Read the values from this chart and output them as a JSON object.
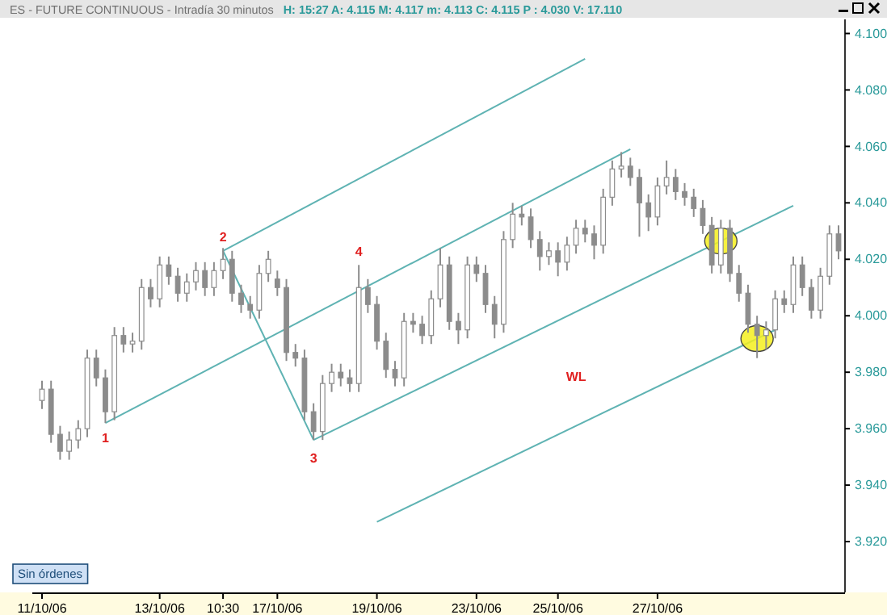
{
  "chart_data": {
    "type": "candlestick",
    "title": "ES - FUTURE CONTINUOUS - Intradía 30 minutos",
    "subtitle": "H: 15:27  A: 4.115  M: 4.117  m: 4.113  C: 4.115  P : 4.030  V: 17.110",
    "categories": [
      "11/10/06",
      null,
      null,
      null,
      null,
      null,
      null,
      null,
      null,
      null,
      null,
      null,
      null,
      "13/10/06",
      null,
      null,
      null,
      null,
      null,
      null,
      "10:30",
      null,
      null,
      null,
      null,
      null,
      "17/10/06",
      null,
      null,
      null,
      null,
      null,
      null,
      null,
      null,
      null,
      null,
      "19/10/06",
      null,
      null,
      null,
      null,
      null,
      null,
      null,
      null,
      null,
      null,
      "23/10/06",
      null,
      null,
      null,
      null,
      null,
      null,
      null,
      null,
      "25/10/06",
      null,
      null,
      null,
      null,
      null,
      null,
      null,
      null,
      null,
      null,
      "27/10/06",
      null,
      null,
      null,
      null,
      null,
      null,
      null,
      null,
      null,
      null,
      null,
      null,
      null,
      null,
      null,
      null,
      null,
      null,
      null,
      null
    ],
    "ohlc": [
      [
        3.97,
        3.977,
        3.967,
        3.974
      ],
      [
        3.974,
        3.977,
        3.955,
        3.958
      ],
      [
        3.958,
        3.961,
        3.949,
        3.952
      ],
      [
        3.952,
        3.959,
        3.949,
        3.956
      ],
      [
        3.956,
        3.963,
        3.953,
        3.96
      ],
      [
        3.96,
        3.988,
        3.957,
        3.985
      ],
      [
        3.985,
        3.988,
        3.975,
        3.978
      ],
      [
        3.978,
        3.981,
        3.962,
        3.966
      ],
      [
        3.966,
        3.996,
        3.963,
        3.993
      ],
      [
        3.993,
        3.996,
        3.987,
        3.99
      ],
      [
        3.99,
        3.994,
        3.987,
        3.991
      ],
      [
        3.991,
        4.013,
        3.988,
        4.01
      ],
      [
        4.01,
        4.013,
        4.003,
        4.006
      ],
      [
        4.006,
        4.021,
        4.003,
        4.018
      ],
      [
        4.018,
        4.021,
        4.011,
        4.014
      ],
      [
        4.014,
        4.017,
        4.005,
        4.008
      ],
      [
        4.008,
        4.015,
        4.005,
        4.012
      ],
      [
        4.012,
        4.019,
        4.009,
        4.016
      ],
      [
        4.016,
        4.019,
        4.007,
        4.01
      ],
      [
        4.01,
        4.019,
        4.007,
        4.016
      ],
      [
        4.016,
        4.024,
        4.013,
        4.02
      ],
      [
        4.02,
        4.023,
        4.005,
        4.008
      ],
      [
        4.008,
        4.011,
        4.001,
        4.004
      ],
      [
        4.004,
        4.007,
        3.999,
        4.002
      ],
      [
        4.002,
        4.018,
        3.999,
        4.015
      ],
      [
        4.015,
        4.023,
        4.012,
        4.02
      ],
      [
        4.013,
        4.016,
        4.007,
        4.01
      ],
      [
        4.01,
        4.013,
        3.984,
        3.987
      ],
      [
        3.987,
        3.99,
        3.982,
        3.985
      ],
      [
        3.985,
        3.988,
        3.963,
        3.966
      ],
      [
        3.966,
        3.969,
        3.956,
        3.959
      ],
      [
        3.959,
        3.979,
        3.956,
        3.976
      ],
      [
        3.976,
        3.983,
        3.973,
        3.98
      ],
      [
        3.98,
        3.983,
        3.975,
        3.978
      ],
      [
        3.978,
        3.981,
        3.973,
        3.976
      ],
      [
        3.976,
        4.018,
        3.973,
        4.01
      ],
      [
        4.01,
        4.013,
        4.001,
        4.004
      ],
      [
        4.004,
        4.007,
        3.988,
        3.991
      ],
      [
        3.991,
        3.994,
        3.978,
        3.981
      ],
      [
        3.981,
        3.984,
        3.975,
        3.978
      ],
      [
        3.978,
        4.001,
        3.975,
        3.998
      ],
      [
        3.998,
        4.001,
        3.994,
        3.997
      ],
      [
        3.997,
        4.0,
        3.99,
        3.993
      ],
      [
        3.993,
        4.009,
        3.99,
        4.006
      ],
      [
        4.006,
        4.024,
        4.003,
        4.018
      ],
      [
        4.018,
        4.021,
        3.995,
        3.998
      ],
      [
        3.998,
        4.001,
        3.99,
        3.995
      ],
      [
        3.995,
        4.021,
        3.992,
        4.018
      ],
      [
        4.018,
        4.021,
        4.012,
        4.015
      ],
      [
        4.015,
        4.018,
        4.001,
        4.004
      ],
      [
        4.004,
        4.007,
        3.992,
        3.997
      ],
      [
        3.997,
        4.03,
        3.994,
        4.027
      ],
      [
        4.027,
        4.04,
        4.024,
        4.036
      ],
      [
        4.036,
        4.039,
        4.032,
        4.035
      ],
      [
        4.035,
        4.038,
        4.024,
        4.027
      ],
      [
        4.027,
        4.03,
        4.016,
        4.021
      ],
      [
        4.021,
        4.026,
        4.018,
        4.023
      ],
      [
        4.023,
        4.026,
        4.014,
        4.019
      ],
      [
        4.019,
        4.028,
        4.016,
        4.025
      ],
      [
        4.025,
        4.034,
        4.022,
        4.031
      ],
      [
        4.031,
        4.034,
        4.026,
        4.029
      ],
      [
        4.029,
        4.032,
        4.02,
        4.025
      ],
      [
        4.025,
        4.045,
        4.022,
        4.042
      ],
      [
        4.042,
        4.055,
        4.039,
        4.052
      ],
      [
        4.052,
        4.058,
        4.049,
        4.053
      ],
      [
        4.053,
        4.056,
        4.046,
        4.049
      ],
      [
        4.049,
        4.052,
        4.028,
        4.04
      ],
      [
        4.04,
        4.043,
        4.03,
        4.035
      ],
      [
        4.035,
        4.049,
        4.032,
        4.046
      ],
      [
        4.046,
        4.055,
        4.043,
        4.049
      ],
      [
        4.049,
        4.052,
        4.041,
        4.044
      ],
      [
        4.044,
        4.047,
        4.039,
        4.042
      ],
      [
        4.042,
        4.045,
        4.035,
        4.038
      ],
      [
        4.038,
        4.041,
        4.029,
        4.032
      ],
      [
        4.032,
        4.035,
        4.015,
        4.018
      ],
      [
        4.018,
        4.034,
        4.015,
        4.031
      ],
      [
        4.031,
        4.034,
        4.012,
        4.015
      ],
      [
        4.015,
        4.018,
        4.005,
        4.008
      ],
      [
        4.008,
        4.011,
        3.994,
        3.997
      ],
      [
        3.997,
        4.0,
        3.985,
        3.993
      ],
      [
        3.993,
        3.998,
        3.988,
        3.995
      ],
      [
        3.995,
        4.009,
        3.992,
        4.006
      ],
      [
        4.006,
        4.009,
        4.001,
        4.004
      ],
      [
        4.004,
        4.021,
        4.001,
        4.018
      ],
      [
        4.018,
        4.021,
        4.007,
        4.01
      ],
      [
        4.01,
        4.013,
        3.999,
        4.002
      ],
      [
        4.002,
        4.017,
        3.999,
        4.014
      ],
      [
        4.014,
        4.032,
        4.011,
        4.029
      ],
      [
        4.029,
        4.032,
        4.02,
        4.023
      ]
    ],
    "color": "#8c8c8c",
    "series": [
      {
        "type": "line",
        "color": "#5fb3b3",
        "values": [
          null,
          null,
          null,
          null,
          null,
          null,
          null,
          3.962,
          null,
          null,
          null,
          null,
          null,
          null,
          null,
          null,
          null,
          null,
          null,
          null,
          null,
          null,
          null,
          null,
          null,
          null,
          null,
          null,
          null,
          null,
          null,
          null,
          null,
          null,
          null,
          null,
          null,
          null,
          null,
          null,
          null,
          null,
          null,
          null,
          null,
          null,
          null,
          null,
          null,
          null,
          null,
          null,
          null,
          null,
          null,
          null,
          null,
          null,
          null,
          null,
          null,
          null,
          null,
          null,
          null,
          4.059,
          null,
          null,
          null,
          null,
          null,
          null,
          null,
          null,
          null,
          null,
          null,
          null,
          null,
          null,
          null,
          null,
          null,
          null,
          null,
          null,
          null,
          null,
          null
        ]
      },
      {
        "type": "line",
        "color": "#5fb3b3",
        "values": [
          null,
          null,
          null,
          null,
          null,
          null,
          null,
          null,
          null,
          null,
          null,
          null,
          null,
          null,
          null,
          null,
          null,
          null,
          null,
          null,
          4.023,
          null,
          null,
          null,
          null,
          null,
          null,
          null,
          null,
          null,
          null,
          null,
          null,
          null,
          null,
          null,
          null,
          null,
          null,
          null,
          null,
          null,
          null,
          null,
          null,
          null,
          null,
          null,
          null,
          null,
          null,
          null,
          null,
          null,
          null,
          null,
          null,
          null,
          null,
          null,
          4.091,
          null,
          null,
          null,
          null,
          null,
          null,
          null,
          null,
          null,
          null,
          null,
          null,
          null,
          null,
          null,
          null,
          null,
          null,
          null,
          null,
          null,
          null,
          null,
          null,
          null,
          null,
          null,
          null
        ]
      },
      {
        "type": "line",
        "color": "#5fb3b3",
        "values": [
          null,
          null,
          null,
          null,
          null,
          null,
          null,
          null,
          null,
          null,
          null,
          null,
          null,
          null,
          null,
          null,
          null,
          null,
          null,
          null,
          4.023,
          null,
          null,
          null,
          null,
          null,
          null,
          null,
          null,
          null,
          3.956,
          null,
          null,
          null,
          null,
          null,
          null,
          null,
          null,
          null,
          null,
          null,
          null,
          null,
          null,
          null,
          null,
          null,
          null,
          null,
          null,
          null,
          null,
          null,
          null,
          null,
          null,
          null,
          null,
          null,
          null,
          null,
          null,
          null,
          null,
          null,
          null,
          null,
          null,
          null,
          null,
          null,
          null,
          null,
          null,
          null,
          null,
          null,
          null,
          null,
          null,
          null,
          null,
          null,
          null,
          null,
          null,
          null,
          null
        ]
      },
      {
        "type": "line",
        "color": "#5fb3b3",
        "values": [
          null,
          null,
          null,
          null,
          null,
          null,
          null,
          null,
          null,
          null,
          null,
          null,
          null,
          null,
          null,
          null,
          null,
          null,
          null,
          null,
          null,
          null,
          null,
          null,
          null,
          null,
          null,
          null,
          null,
          null,
          3.956,
          null,
          null,
          null,
          null,
          null,
          null,
          null,
          null,
          null,
          null,
          null,
          null,
          null,
          null,
          null,
          null,
          null,
          null,
          null,
          null,
          null,
          null,
          null,
          null,
          null,
          null,
          null,
          null,
          null,
          null,
          null,
          null,
          null,
          null,
          null,
          null,
          null,
          null,
          null,
          null,
          null,
          null,
          null,
          null,
          null,
          null,
          null,
          null,
          null,
          null,
          null,
          null,
          4.039,
          null,
          null,
          null,
          null,
          null
        ]
      },
      {
        "type": "line",
        "color": "#5fb3b3",
        "values": [
          null,
          null,
          null,
          null,
          null,
          null,
          null,
          null,
          null,
          null,
          null,
          null,
          null,
          null,
          null,
          null,
          null,
          null,
          null,
          null,
          null,
          null,
          null,
          null,
          null,
          null,
          null,
          null,
          null,
          null,
          null,
          null,
          null,
          null,
          null,
          null,
          null,
          3.927,
          null,
          null,
          null,
          null,
          null,
          null,
          null,
          null,
          null,
          null,
          null,
          null,
          null,
          null,
          null,
          null,
          null,
          null,
          null,
          null,
          null,
          null,
          null,
          null,
          null,
          null,
          null,
          null,
          null,
          null,
          null,
          null,
          null,
          null,
          null,
          null,
          null,
          null,
          null,
          null,
          null,
          null,
          null,
          3.995,
          null,
          null,
          null,
          null,
          null,
          null,
          null
        ]
      }
    ],
    "annotations": [
      "1",
      "2",
      "3",
      "4",
      "WL",
      "Sin órdenes"
    ],
    "ylim": [
      3.902,
      4.105
    ],
    "yticks": [
      {
        "value": 3.92,
        "label": "3.920"
      },
      {
        "value": 3.94,
        "label": "3.940"
      },
      {
        "value": 3.96,
        "label": "3.960"
      },
      {
        "value": 3.98,
        "label": "3.980"
      },
      {
        "value": 4.0,
        "label": "4.000"
      },
      {
        "value": 4.02,
        "label": "4.020"
      },
      {
        "value": 4.04,
        "label": "4.040"
      },
      {
        "value": 4.06,
        "label": "4.060"
      },
      {
        "value": 4.08,
        "label": "4.080"
      },
      {
        "value": 4.1,
        "label": "4.100"
      }
    ],
    "grid": false
  }
}
